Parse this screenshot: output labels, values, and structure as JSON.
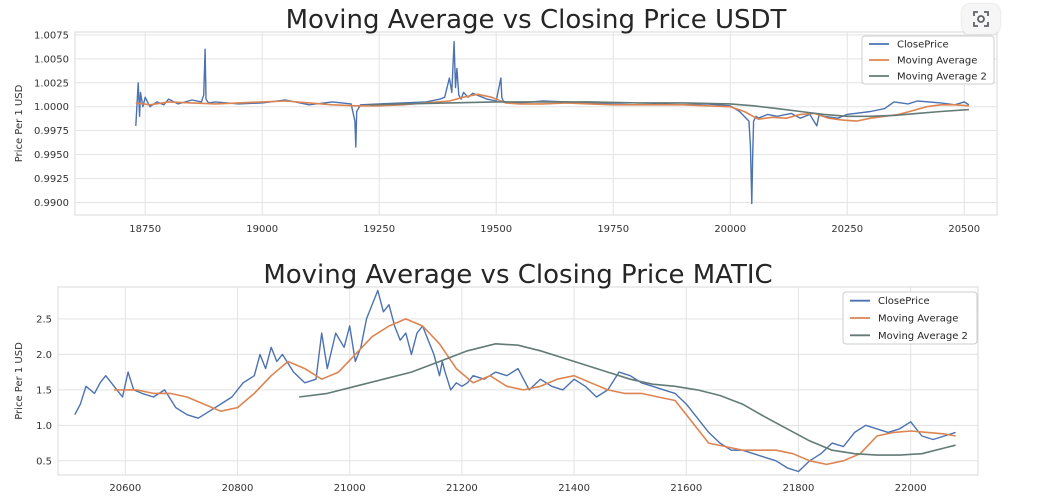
{
  "lens_button": {
    "icon": "lens-icon"
  },
  "chart_data": [
    {
      "type": "line",
      "title": "Moving Average vs Closing Price USDT",
      "xlabel": "",
      "ylabel": "Price Per 1 USD",
      "xlim": [
        18600,
        20570
      ],
      "ylim": [
        0.9887,
        1.0078
      ],
      "xticks": [
        18750,
        19000,
        19250,
        19500,
        19750,
        20000,
        20250,
        20500
      ],
      "yticks": [
        0.99,
        0.9925,
        0.995,
        0.9975,
        1.0,
        1.0025,
        1.005,
        1.0075
      ],
      "ytick_decimals": 4,
      "grid": true,
      "legend": "top-right",
      "series": [
        {
          "name": "ClosePrice",
          "color": "#4c72b0",
          "x": [
            18730,
            18735,
            18738,
            18740,
            18745,
            18750,
            18760,
            18775,
            18790,
            18800,
            18820,
            18850,
            18870,
            18875,
            18878,
            18880,
            18885,
            18900,
            18950,
            19000,
            19050,
            19100,
            19150,
            19190,
            19198,
            19200,
            19202,
            19210,
            19250,
            19300,
            19350,
            19380,
            19390,
            19400,
            19405,
            19410,
            19413,
            19416,
            19420,
            19425,
            19430,
            19440,
            19450,
            19480,
            19500,
            19510,
            19512,
            19515,
            19520,
            19550,
            19600,
            19650,
            19700,
            19750,
            19800,
            19850,
            19900,
            19950,
            20000,
            20020,
            20040,
            20043,
            20046,
            20048,
            20050,
            20055,
            20060,
            20080,
            20100,
            20130,
            20150,
            20170,
            20185,
            20190,
            20200,
            20230,
            20250,
            20300,
            20330,
            20350,
            20380,
            20400,
            20450,
            20480,
            20500,
            20510
          ],
          "y": [
            0.998,
            1.0025,
            0.999,
            1.0015,
            1.0,
            1.001,
            1.0,
            1.0005,
            1.0002,
            1.0008,
            1.0003,
            1.0007,
            1.0005,
            1.0012,
            1.006,
            1.0008,
            1.0004,
            1.0005,
            1.0003,
            1.0004,
            1.0007,
            1.0002,
            1.0005,
            1.0003,
            0.9985,
            0.9958,
            0.9995,
            1.0002,
            1.0003,
            1.0004,
            1.0005,
            1.0008,
            1.001,
            1.003,
            1.0015,
            1.0068,
            1.002,
            1.004,
            1.0012,
            1.0008,
            1.0015,
            1.001,
            1.0014,
            1.0008,
            1.0006,
            1.003,
            1.001,
            1.0006,
            1.0005,
            1.0004,
            1.0006,
            1.0005,
            1.0004,
            1.0003,
            1.0002,
            1.0003,
            1.0002,
            1.0003,
            1.0001,
            0.9995,
            0.9985,
            0.996,
            0.9899,
            0.995,
            0.9985,
            0.999,
            0.9988,
            0.9992,
            0.999,
            0.9993,
            0.9988,
            0.9992,
            0.998,
            0.9992,
            0.999,
            0.9988,
            0.9992,
            0.9995,
            0.9998,
            1.0005,
            1.0003,
            1.0006,
            1.0004,
            1.0002,
            1.0005,
            1.0002
          ]
        },
        {
          "name": "Moving Average",
          "color": "#dd8452",
          "x": [
            18730,
            18760,
            18800,
            18850,
            18900,
            18950,
            19000,
            19050,
            19100,
            19150,
            19200,
            19250,
            19300,
            19350,
            19400,
            19430,
            19460,
            19490,
            19520,
            19550,
            19600,
            19650,
            19700,
            19750,
            19800,
            19850,
            19900,
            19950,
            20000,
            20030,
            20060,
            20090,
            20120,
            20150,
            20180,
            20210,
            20240,
            20270,
            20300,
            20330,
            20360,
            20390,
            20420,
            20450,
            20480,
            20510
          ],
          "y": [
            1.0004,
            1.0002,
            1.0005,
            1.0004,
            1.0003,
            1.0004,
            1.0005,
            1.0006,
            1.0004,
            1.0002,
            1.0001,
            1.0001,
            1.0002,
            1.0004,
            1.0006,
            1.001,
            1.0013,
            1.001,
            1.0004,
            1.0003,
            1.0003,
            1.0004,
            1.0003,
            1.0002,
            1.0002,
            1.0002,
            1.0002,
            1.0001,
            1.0,
            0.9995,
            0.9987,
            0.9989,
            0.9988,
            0.9992,
            0.9993,
            0.9988,
            0.9986,
            0.9985,
            0.9988,
            0.999,
            0.9992,
            0.9996,
            1.0,
            1.0002,
            1.0002,
            1.0001
          ]
        },
        {
          "name": "Moving Average 2",
          "color": "#637b76",
          "x": [
            19230,
            19300,
            19400,
            19500,
            19600,
            19700,
            19800,
            19900,
            20000,
            20050,
            20100,
            20150,
            20200,
            20250,
            20300,
            20350,
            20400,
            20450,
            20510
          ],
          "y": [
            1.0002,
            1.0003,
            1.0004,
            1.0005,
            1.0005,
            1.0005,
            1.0004,
            1.0004,
            1.0003,
            1.0001,
            0.9998,
            0.9995,
            0.9992,
            0.999,
            0.999,
            0.9991,
            0.9993,
            0.9995,
            0.9997
          ]
        }
      ]
    },
    {
      "type": "line",
      "title": "Moving Average vs Closing Price MATIC",
      "xlabel": "",
      "ylabel": "Price Per 1 USD",
      "xlim": [
        20480,
        22120
      ],
      "ylim": [
        0.3,
        2.95
      ],
      "xticks": [
        20600,
        20800,
        21000,
        21200,
        21400,
        21600,
        21800,
        22000
      ],
      "yticks": [
        0.5,
        1.0,
        1.5,
        2.0,
        2.5
      ],
      "ytick_decimals": 1,
      "grid": true,
      "legend": "top-right",
      "series": [
        {
          "name": "ClosePrice",
          "color": "#4c72b0",
          "x": [
            20510,
            20520,
            20530,
            20545,
            20555,
            20565,
            20580,
            20595,
            20605,
            20615,
            20630,
            20650,
            20670,
            20690,
            20710,
            20730,
            20750,
            20770,
            20790,
            20810,
            20830,
            20840,
            20850,
            20860,
            20870,
            20880,
            20900,
            20920,
            20940,
            20950,
            20960,
            20975,
            20990,
            21000,
            21010,
            21020,
            21030,
            21040,
            21050,
            21060,
            21070,
            21080,
            21090,
            21100,
            21110,
            21120,
            21130,
            21140,
            21150,
            21160,
            21165,
            21170,
            21180,
            21190,
            21200,
            21210,
            21220,
            21240,
            21260,
            21280,
            21300,
            21320,
            21340,
            21360,
            21380,
            21400,
            21420,
            21440,
            21460,
            21480,
            21500,
            21520,
            21540,
            21560,
            21580,
            21600,
            21620,
            21640,
            21660,
            21680,
            21700,
            21720,
            21740,
            21760,
            21780,
            21800,
            21820,
            21840,
            21860,
            21880,
            21900,
            21920,
            21940,
            21960,
            21980,
            22000,
            22020,
            22040,
            22060,
            22080
          ],
          "y": [
            1.15,
            1.3,
            1.55,
            1.45,
            1.6,
            1.7,
            1.55,
            1.4,
            1.75,
            1.5,
            1.45,
            1.4,
            1.5,
            1.25,
            1.15,
            1.1,
            1.2,
            1.3,
            1.4,
            1.6,
            1.7,
            2.0,
            1.8,
            2.1,
            1.9,
            2.0,
            1.75,
            1.6,
            1.65,
            2.3,
            1.8,
            2.3,
            2.1,
            2.4,
            1.9,
            2.1,
            2.5,
            2.7,
            2.9,
            2.6,
            2.7,
            2.4,
            2.2,
            2.3,
            2.0,
            2.3,
            2.4,
            2.2,
            2.0,
            1.7,
            1.9,
            1.75,
            1.5,
            1.6,
            1.55,
            1.6,
            1.7,
            1.65,
            1.75,
            1.7,
            1.8,
            1.5,
            1.65,
            1.55,
            1.5,
            1.65,
            1.55,
            1.4,
            1.5,
            1.75,
            1.7,
            1.6,
            1.55,
            1.5,
            1.45,
            1.3,
            1.1,
            0.9,
            0.75,
            0.65,
            0.65,
            0.6,
            0.55,
            0.5,
            0.4,
            0.35,
            0.5,
            0.6,
            0.75,
            0.7,
            0.9,
            1.0,
            0.95,
            0.9,
            0.95,
            1.05,
            0.85,
            0.8,
            0.85,
            0.9
          ],
          "x2": null
        },
        {
          "name": "Moving Average",
          "color": "#dd8452",
          "x": [
            20580,
            20620,
            20650,
            20680,
            20710,
            20740,
            20770,
            20800,
            20830,
            20860,
            20890,
            20920,
            20950,
            20980,
            21010,
            21040,
            21070,
            21100,
            21130,
            21160,
            21190,
            21220,
            21250,
            21280,
            21310,
            21340,
            21370,
            21400,
            21430,
            21460,
            21490,
            21520,
            21550,
            21580,
            21610,
            21640,
            21670,
            21700,
            21730,
            21760,
            21790,
            21820,
            21850,
            21880,
            21910,
            21940,
            21970,
            22000,
            22030,
            22060,
            22080
          ],
          "y": [
            1.5,
            1.5,
            1.45,
            1.45,
            1.4,
            1.3,
            1.2,
            1.25,
            1.45,
            1.7,
            1.9,
            1.8,
            1.65,
            1.75,
            2.0,
            2.25,
            2.4,
            2.5,
            2.4,
            2.15,
            1.8,
            1.6,
            1.7,
            1.55,
            1.5,
            1.55,
            1.65,
            1.7,
            1.6,
            1.5,
            1.45,
            1.45,
            1.4,
            1.35,
            1.05,
            0.75,
            0.7,
            0.65,
            0.65,
            0.65,
            0.6,
            0.5,
            0.45,
            0.5,
            0.6,
            0.85,
            0.9,
            0.92,
            0.9,
            0.88,
            0.85
          ],
          "x2": null
        },
        {
          "name": "Moving Average 2",
          "color": "#637b76",
          "x": [
            20910,
            20960,
            21010,
            21060,
            21110,
            21160,
            21210,
            21260,
            21300,
            21340,
            21380,
            21420,
            21460,
            21500,
            21540,
            21580,
            21620,
            21660,
            21700,
            21740,
            21780,
            21820,
            21860,
            21900,
            21940,
            21980,
            22020,
            22060,
            22080
          ],
          "y": [
            1.4,
            1.45,
            1.55,
            1.65,
            1.75,
            1.9,
            2.05,
            2.15,
            2.13,
            2.05,
            1.95,
            1.85,
            1.75,
            1.65,
            1.58,
            1.55,
            1.5,
            1.42,
            1.3,
            1.12,
            0.95,
            0.78,
            0.65,
            0.6,
            0.58,
            0.58,
            0.6,
            0.68,
            0.72
          ],
          "x2": null
        }
      ]
    }
  ]
}
